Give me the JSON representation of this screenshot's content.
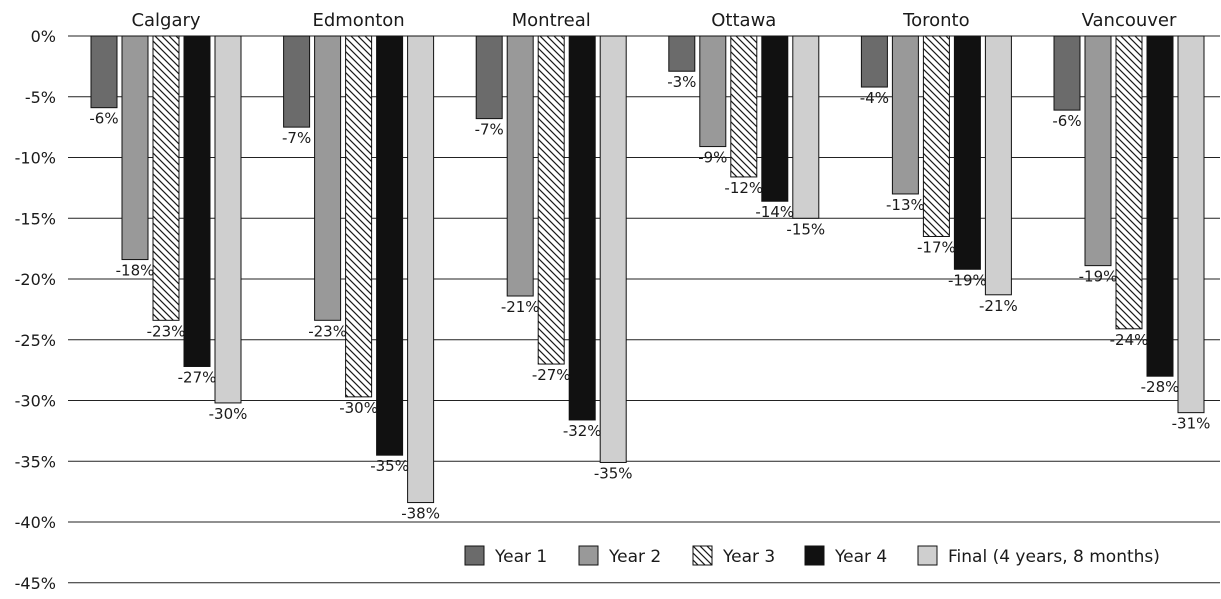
{
  "chart_data": {
    "type": "bar",
    "categories": [
      "Calgary",
      "Edmonton",
      "Montreal",
      "Ottawa",
      "Toronto",
      "Vancouver"
    ],
    "ylim": [
      -45,
      0
    ],
    "yticks": [
      "0%",
      "-5%",
      "-10%",
      "-15%",
      "-20%",
      "-25%",
      "-30%",
      "-35%",
      "-40%",
      "-45%"
    ],
    "grid": true,
    "legend_position": "bottom-right",
    "series": [
      {
        "name": "Year 1",
        "color": "#6b6b6b",
        "pattern": "solid",
        "values": [
          -5.9,
          -7.5,
          -6.8,
          -2.9,
          -4.2,
          -6.1
        ],
        "labels": [
          "-6%",
          "-7%",
          "-7%",
          "-3%",
          "-4%",
          "-6%"
        ]
      },
      {
        "name": "Year 2",
        "color": "#999999",
        "pattern": "solid",
        "values": [
          -18.4,
          -23.4,
          -21.4,
          -9.1,
          -13.0,
          -18.9
        ],
        "labels": [
          "-18%",
          "-23%",
          "-21%",
          "-9%",
          "-13%",
          "-19%"
        ]
      },
      {
        "name": "Year 3",
        "color": "#ffffff",
        "pattern": "hatch",
        "values": [
          -23.4,
          -29.7,
          -27.0,
          -11.6,
          -16.5,
          -24.1
        ],
        "labels": [
          "-23%",
          "-30%",
          "-27%",
          "-12%",
          "-17%",
          "-24%"
        ]
      },
      {
        "name": "Year 4",
        "color": "#111111",
        "pattern": "solid",
        "values": [
          -27.2,
          -34.5,
          -31.6,
          -13.6,
          -19.2,
          -28.0
        ],
        "labels": [
          "-27%",
          "-35%",
          "-32%",
          "-14%",
          "-19%",
          "-28%"
        ]
      },
      {
        "name": "Final (4 years, 8 months)",
        "color": "#cfcfcf",
        "pattern": "solid",
        "values": [
          -30.2,
          -38.4,
          -35.1,
          -15.0,
          -21.3,
          -31.0
        ],
        "labels": [
          "-30%",
          "-38%",
          "-35%",
          "-15%",
          "-21%",
          "-31%"
        ]
      }
    ]
  }
}
